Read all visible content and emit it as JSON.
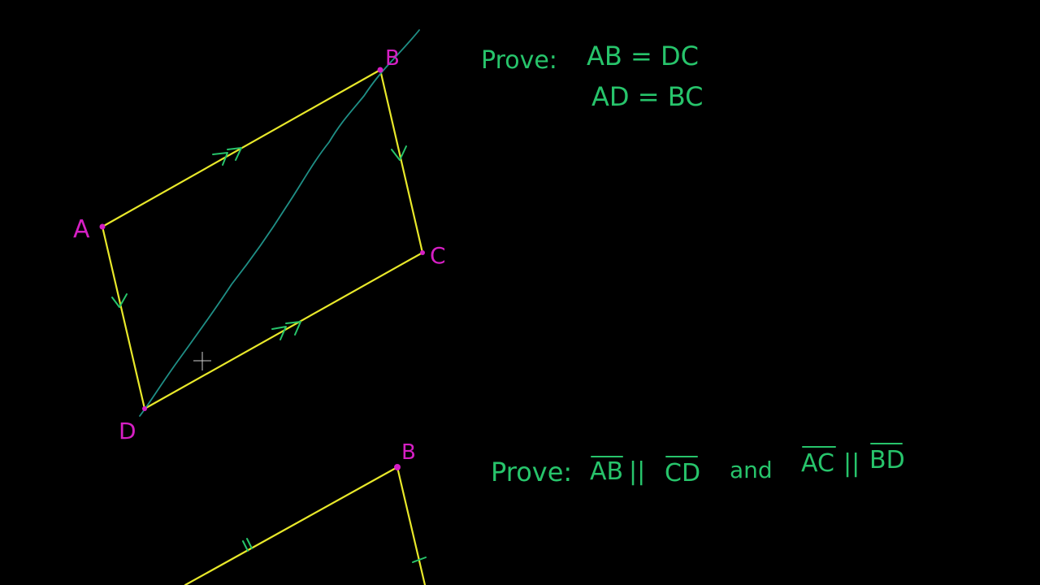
{
  "colors": {
    "background": "#000000",
    "edge": "#e8e82a",
    "diagonal": "#1f8f86",
    "marks": "#27c46b",
    "labels": "#d61fc4"
  },
  "figure1": {
    "labels": {
      "a": "A",
      "b": "B",
      "c": "C",
      "d": "D"
    },
    "prove_label": "Prove:",
    "prove_line1": "AB = DC",
    "prove_line2": "AD = BC"
  },
  "figure2": {
    "labels": {
      "b": "B"
    },
    "prove_label": "Prove:",
    "segments": [
      "AB",
      "CD",
      "AC",
      "BD"
    ],
    "parallel_symbol": "||",
    "conjunction": "and"
  },
  "cursor_icon": "crosshair-cursor-icon"
}
